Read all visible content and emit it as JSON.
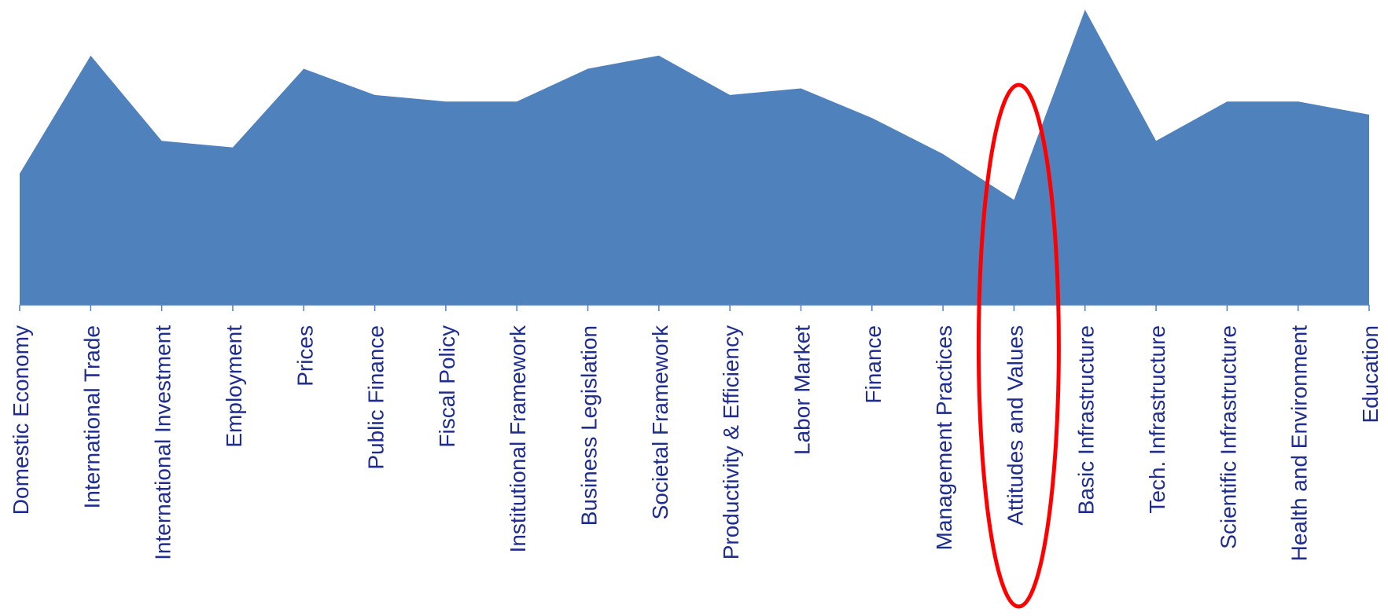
{
  "chart_data": {
    "type": "area",
    "categories": [
      "Domestic Economy",
      "International Trade",
      "International Investment",
      "Employment",
      "Prices",
      "Public Finance",
      "Fiscal Policy",
      "Institutional Framework",
      "Business Legislation",
      "Societal Framework",
      "Productivity & Efficiency",
      "Labor Market",
      "Finance",
      "Management Practices",
      "Attitudes and Values",
      "Basic Infrastructure",
      "Tech. Infrastructure",
      "Scientific Infrastructure",
      "Health and Environment",
      "Education"
    ],
    "series": [
      {
        "values": [
          40,
          76,
          50,
          48,
          72,
          64,
          62,
          62,
          72,
          76,
          64,
          66,
          57,
          46,
          32,
          90,
          50,
          62,
          62,
          58
        ]
      }
    ],
    "ylim": [
      0,
      92
    ],
    "grid": false,
    "legend": "none",
    "highlight": {
      "category": "Attitudes and Values",
      "shape": "ellipse",
      "color": "#ff0000"
    },
    "colors": {
      "area": "#4f81bd",
      "axis": "#4f81bd",
      "label": "#1f2d8f"
    }
  }
}
